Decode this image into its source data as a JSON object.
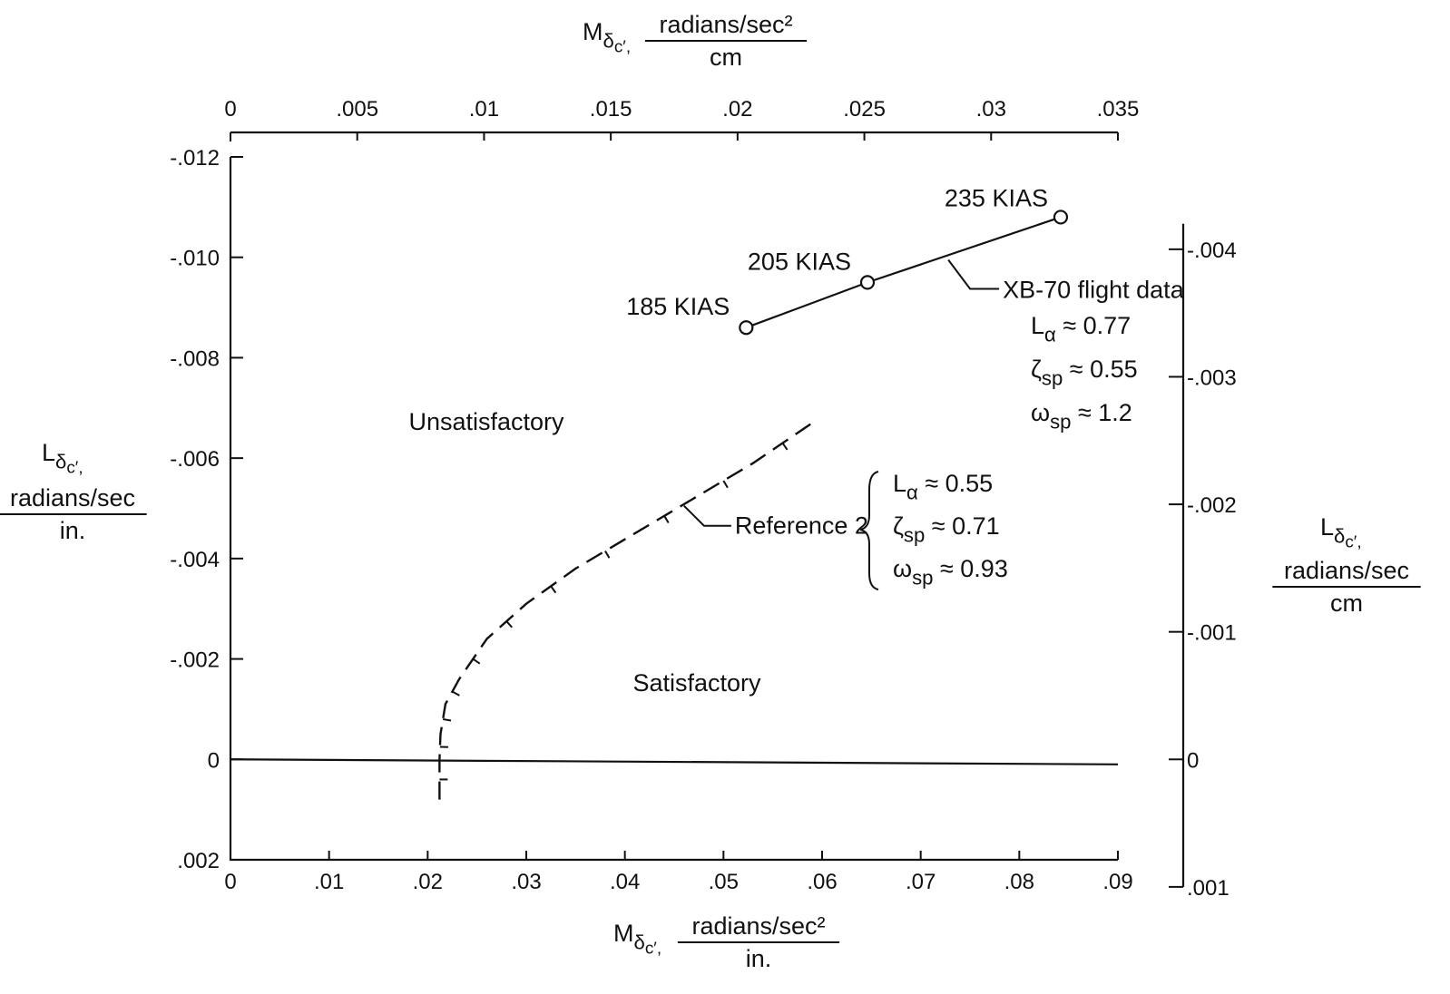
{
  "chart_data": {
    "type": "line",
    "x_bottom": {
      "symbol": "M",
      "subscript": "δ",
      "sub_subscript": "c′",
      "unit_numerator": "radians/sec²",
      "unit_denominator": "in.",
      "range": [
        0,
        0.09
      ],
      "ticks": [
        0,
        0.01,
        0.02,
        0.03,
        0.04,
        0.05,
        0.06,
        0.07,
        0.08,
        0.09
      ],
      "tick_labels": [
        "0",
        ".01",
        ".02",
        ".03",
        ".04",
        ".05",
        ".06",
        ".07",
        ".08",
        ".09"
      ]
    },
    "x_top": {
      "symbol": "M",
      "subscript": "δ",
      "sub_subscript": "c′",
      "unit_numerator": "radians/sec²",
      "unit_denominator": "cm",
      "range": [
        0,
        0.035
      ],
      "ticks": [
        0,
        0.005,
        0.01,
        0.015,
        0.02,
        0.025,
        0.03,
        0.035
      ],
      "tick_labels": [
        "0",
        ".005",
        ".01",
        ".015",
        ".02",
        ".025",
        ".03",
        ".035"
      ]
    },
    "y_left": {
      "symbol": "L",
      "subscript": "δ",
      "sub_subscript": "c′",
      "unit_numerator": "radians/sec",
      "unit_denominator": "in.",
      "range": [
        0.002,
        -0.012
      ],
      "ticks": [
        -0.012,
        -0.01,
        -0.008,
        -0.006,
        -0.004,
        -0.002,
        0,
        0.002
      ],
      "tick_labels": [
        "-.012",
        "-.010",
        "-.008",
        "-.006",
        "-.004",
        "-.002",
        "0",
        ".002"
      ]
    },
    "y_right": {
      "symbol": "L",
      "subscript": "δ",
      "sub_subscript": "c′",
      "unit_numerator": "radians/sec",
      "unit_denominator": "cm",
      "ticks": [
        -0.004,
        -0.003,
        -0.002,
        -0.001,
        0,
        0.001
      ],
      "tick_labels": [
        "-.004",
        "-.003",
        "-.002",
        "-.001",
        "0",
        ".001"
      ]
    },
    "series": [
      {
        "name": "XB-70 flight data",
        "style": "solid-with-circles",
        "points": [
          {
            "x": 0.0523,
            "y": -0.0086,
            "label": "185 KIAS"
          },
          {
            "x": 0.0646,
            "y": -0.0095,
            "label": "205 KIAS"
          },
          {
            "x": 0.0842,
            "y": -0.0108,
            "label": "235 KIAS"
          }
        ],
        "params": [
          {
            "sym": "L",
            "sub": "α",
            "val": "≈ 0.77"
          },
          {
            "sym": "ζ",
            "sub": "sp",
            "val": "≈ 0.55"
          },
          {
            "sym": "ω",
            "sub": "sp",
            "val": "≈ 1.2"
          }
        ]
      },
      {
        "name": "Reference 2",
        "style": "hatched-boundary",
        "points": [
          {
            "x": 0.0212,
            "y": 0.0008
          },
          {
            "x": 0.0212,
            "y": 0.0
          },
          {
            "x": 0.0213,
            "y": -0.0005
          },
          {
            "x": 0.0218,
            "y": -0.0011
          },
          {
            "x": 0.0232,
            "y": -0.0016
          },
          {
            "x": 0.026,
            "y": -0.0024
          },
          {
            "x": 0.03,
            "y": -0.0031
          },
          {
            "x": 0.035,
            "y": -0.0038
          },
          {
            "x": 0.041,
            "y": -0.0045
          },
          {
            "x": 0.047,
            "y": -0.0052
          },
          {
            "x": 0.053,
            "y": -0.0059
          },
          {
            "x": 0.059,
            "y": -0.0067
          }
        ],
        "params": [
          {
            "sym": "L",
            "sub": "α",
            "val": "≈ 0.55"
          },
          {
            "sym": "ζ",
            "sub": "sp",
            "val": "≈ 0.71"
          },
          {
            "sym": "ω",
            "sub": "sp",
            "val": "≈ 0.93"
          }
        ]
      }
    ],
    "zero_line": {
      "x": [
        0,
        0.09
      ],
      "y": [
        0,
        0.0001
      ]
    },
    "regions": [
      "Unsatisfactory",
      "Satisfactory"
    ]
  }
}
